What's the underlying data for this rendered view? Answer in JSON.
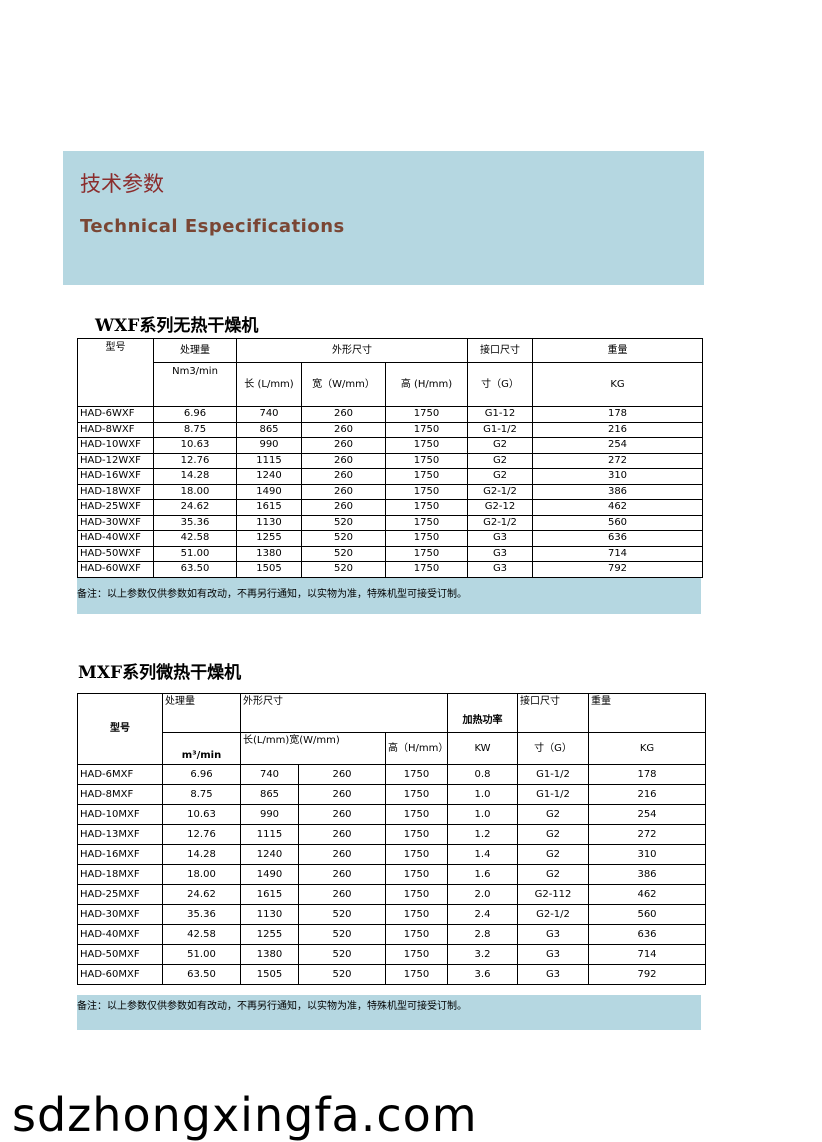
{
  "header": {
    "title_cn": "技术参数",
    "title_en": "Technical Especifications"
  },
  "tables": [
    {
      "title": "WXF系列无热干燥机",
      "header": [
        [
          "型号",
          "处理量",
          "外形尺寸",
          "接口尺寸",
          "重量"
        ],
        [
          "Nm3/min",
          "长 (L/mm)",
          "宽（W/mm）",
          "高 (H/mm)",
          "寸（G）",
          "KG"
        ]
      ],
      "rows": [
        [
          "HAD-6WXF",
          "6.96",
          "740",
          "260",
          "1750",
          "G1-12",
          "178"
        ],
        [
          "HAD-8WXF",
          "8.75",
          "865",
          "260",
          "1750",
          "G1-1/2",
          "216"
        ],
        [
          "HAD-10WXF",
          "10.63",
          "990",
          "260",
          "1750",
          "G2",
          "254"
        ],
        [
          "HAD-12WXF",
          "12.76",
          "1115",
          "260",
          "1750",
          "G2",
          "272"
        ],
        [
          "HAD-16WXF",
          "14.28",
          "1240",
          "260",
          "1750",
          "G2",
          "310"
        ],
        [
          "HAD-18WXF",
          "18.00",
          "1490",
          "260",
          "1750",
          "G2-1/2",
          "386"
        ],
        [
          "HAD-25WXF",
          "24.62",
          "1615",
          "260",
          "1750",
          "G2-12",
          "462"
        ],
        [
          "HAD-30WXF",
          "35.36",
          "1130",
          "520",
          "1750",
          "G2-1/2",
          "560"
        ],
        [
          "HAD-40WXF",
          "42.58",
          "1255",
          "520",
          "1750",
          "G3",
          "636"
        ],
        [
          "HAD-50WXF",
          "51.00",
          "1380",
          "520",
          "1750",
          "G3",
          "714"
        ],
        [
          "HAD-60WXF",
          "63.50",
          "1505",
          "520",
          "1750",
          "G3",
          "792"
        ]
      ],
      "note": "备注：以上参数仅供参数如有改动，不再另行通知，以实物为准，特殊机型可接受订制。"
    },
    {
      "title": "MXF系列微热干燥机",
      "header": [
        [
          "型号",
          "处理量",
          "外形尺寸",
          "加热功率",
          "接口尺寸",
          "重量"
        ],
        [
          "m³/min",
          "长(L/mm)宽(W/mm)",
          "高（H/mm）",
          "KW",
          "寸（G）",
          "KG"
        ]
      ],
      "rows": [
        [
          "HAD-6MXF",
          "6.96",
          "740",
          "260",
          "1750",
          "0.8",
          "G1-1/2",
          "178"
        ],
        [
          "HAD-8MXF",
          "8.75",
          "865",
          "260",
          "1750",
          "1.0",
          "G1-1/2",
          "216"
        ],
        [
          "HAD-10MXF",
          "10.63",
          "990",
          "260",
          "1750",
          "1.0",
          "G2",
          "254"
        ],
        [
          "HAD-13MXF",
          "12.76",
          "1115",
          "260",
          "1750",
          "1.2",
          "G2",
          "272"
        ],
        [
          "HAD-16MXF",
          "14.28",
          "1240",
          "260",
          "1750",
          "1.4",
          "G2",
          "310"
        ],
        [
          "HAD-18MXF",
          "18.00",
          "1490",
          "260",
          "1750",
          "1.6",
          "G2",
          "386"
        ],
        [
          "HAD-25MXF",
          "24.62",
          "1615",
          "260",
          "1750",
          "2.0",
          "G2-112",
          "462"
        ],
        [
          "HAD-30MXF",
          "35.36",
          "1130",
          "520",
          "1750",
          "2.4",
          "G2-1/2",
          "560"
        ],
        [
          "HAD-40MXF",
          "42.58",
          "1255",
          "520",
          "1750",
          "2.8",
          "G3",
          "636"
        ],
        [
          "HAD-50MXF",
          "51.00",
          "1380",
          "520",
          "1750",
          "3.2",
          "G3",
          "714"
        ],
        [
          "HAD-60MXF",
          "63.50",
          "1505",
          "520",
          "1750",
          "3.6",
          "G3",
          "792"
        ]
      ],
      "note": "备注：以上参数仅供参数如有改动，不再另行通知，以实物为准，特殊机型可接受订制。"
    }
  ],
  "footer": "sdzhongxingfa.com"
}
